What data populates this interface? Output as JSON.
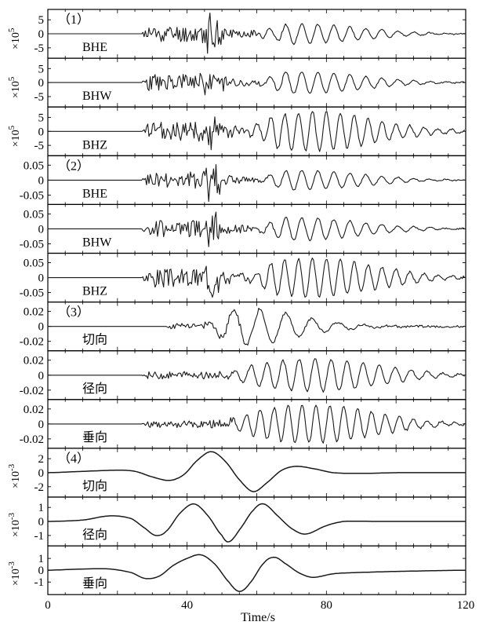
{
  "chart_data": {
    "type": "line",
    "xlabel": "Time/s",
    "xlim": [
      0,
      120
    ],
    "xticks": [
      "0",
      "40",
      "80",
      "120"
    ],
    "groups": [
      "（1）",
      "（2）",
      "（3）",
      "（4）"
    ],
    "panels": [
      {
        "group": "（1）",
        "name": "BHE",
        "exp": "×10",
        "exp_sup": "5",
        "ticks": [
          "5",
          "0",
          "-5"
        ],
        "tick_values": [
          5,
          0,
          -5
        ],
        "ylim": [
          -8,
          8
        ],
        "onset": 27,
        "burst": 47,
        "amp": 3.0,
        "burst_amp": 7.5,
        "surf_start": 58,
        "surf_amp": 3.5,
        "period": 4.6,
        "peak": 72,
        "seed": 11
      },
      {
        "group": "（1）",
        "name": "BHW",
        "exp": "×10",
        "exp_sup": "5",
        "ticks": [
          "5",
          "0",
          "-5"
        ],
        "tick_values": [
          5,
          0,
          -5
        ],
        "ylim": [
          -8,
          8
        ],
        "onset": 27,
        "burst": 47,
        "amp": 3.0,
        "burst_amp": 7.0,
        "surf_start": 58,
        "surf_amp": 4.0,
        "period": 4.6,
        "peak": 72,
        "seed": 23
      },
      {
        "group": "（1）",
        "name": "BHZ",
        "exp": "×10",
        "exp_sup": "5",
        "ticks": [
          "5",
          "0",
          "-5"
        ],
        "tick_values": [
          5,
          0,
          -5
        ],
        "ylim": [
          -8,
          8
        ],
        "onset": 27,
        "burst": 47,
        "amp": 3.5,
        "burst_amp": 5.0,
        "surf_start": 55,
        "surf_amp": 7.0,
        "period": 4.0,
        "peak": 76,
        "seed": 37
      },
      {
        "group": "（2）",
        "name": "BHE",
        "exp": "",
        "exp_sup": "",
        "ticks": [
          "0.05",
          "0",
          "-0.05"
        ],
        "tick_values": [
          0.05,
          0,
          -0.05
        ],
        "ylim": [
          -0.075,
          0.075
        ],
        "onset": 27,
        "burst": 47,
        "amp": 0.028,
        "burst_amp": 0.07,
        "surf_start": 58,
        "surf_amp": 0.033,
        "period": 4.6,
        "peak": 72,
        "seed": 41
      },
      {
        "group": "（2）",
        "name": "BHW",
        "exp": "",
        "exp_sup": "",
        "ticks": [
          "0.05",
          "0",
          "-0.05"
        ],
        "tick_values": [
          0.05,
          0,
          -0.05
        ],
        "ylim": [
          -0.075,
          0.075
        ],
        "onset": 27,
        "burst": 47,
        "amp": 0.028,
        "burst_amp": 0.066,
        "surf_start": 58,
        "surf_amp": 0.038,
        "period": 4.6,
        "peak": 72,
        "seed": 53
      },
      {
        "group": "（2）",
        "name": "BHZ",
        "exp": "",
        "exp_sup": "",
        "ticks": [
          "0.05",
          "0",
          "-0.05"
        ],
        "tick_values": [
          0.05,
          0,
          -0.05
        ],
        "ylim": [
          -0.075,
          0.075
        ],
        "onset": 27,
        "burst": 47,
        "amp": 0.032,
        "burst_amp": 0.045,
        "surf_start": 55,
        "surf_amp": 0.065,
        "period": 4.0,
        "peak": 76,
        "seed": 67
      },
      {
        "group": "（3）",
        "name": "切向",
        "exp": "",
        "exp_sup": "",
        "ticks": [
          "0.02",
          "0",
          "-0.02"
        ],
        "tick_values": [
          0.02,
          0,
          -0.02
        ],
        "ylim": [
          -0.03,
          0.03
        ],
        "onset": 34,
        "burst": 46,
        "amp": 0.004,
        "burst_amp": 0.0,
        "surf_start": 44,
        "surf_amp": 0.026,
        "period": 7.5,
        "peak": 52,
        "seed": 71
      },
      {
        "group": "（3）",
        "name": "径向",
        "exp": "",
        "exp_sup": "",
        "ticks": [
          "0.02",
          "0",
          "-0.02"
        ],
        "tick_values": [
          0.02,
          0,
          -0.02
        ],
        "ylim": [
          -0.03,
          0.03
        ],
        "onset": 27,
        "burst": 47,
        "amp": 0.005,
        "burst_amp": 0.004,
        "surf_start": 48,
        "surf_amp": 0.022,
        "period": 4.6,
        "peak": 77,
        "seed": 83
      },
      {
        "group": "（3）",
        "name": "垂向",
        "exp": "",
        "exp_sup": "",
        "ticks": [
          "0.02",
          "0",
          "-0.02"
        ],
        "tick_values": [
          0.02,
          0,
          -0.02
        ],
        "ylim": [
          -0.03,
          0.03
        ],
        "onset": 27,
        "burst": 47,
        "amp": 0.005,
        "burst_amp": 0.004,
        "surf_start": 48,
        "surf_amp": 0.026,
        "period": 4.0,
        "peak": 76,
        "seed": 97
      },
      {
        "group": "（4）",
        "name": "切向",
        "exp": "×10",
        "exp_sup": "-3",
        "ticks": [
          "2",
          "0",
          "-2"
        ],
        "tick_values": [
          2,
          0,
          -2
        ],
        "ylim": [
          -3.2,
          3.2
        ],
        "smooth": [
          [
            0,
            0
          ],
          [
            8,
            0.15
          ],
          [
            20,
            0.35
          ],
          [
            25,
            0.2
          ],
          [
            30,
            -0.6
          ],
          [
            35,
            -1.1
          ],
          [
            39,
            -0.3
          ],
          [
            43,
            1.8
          ],
          [
            47,
            3.0
          ],
          [
            51,
            1.6
          ],
          [
            55,
            -1.0
          ],
          [
            59,
            -2.7
          ],
          [
            63,
            -1.4
          ],
          [
            67,
            0.3
          ],
          [
            71,
            0.9
          ],
          [
            76,
            0.6
          ],
          [
            82,
            0.0
          ],
          [
            90,
            -0.1
          ],
          [
            100,
            0.0
          ],
          [
            120,
            0.0
          ]
        ]
      },
      {
        "group": "（4）",
        "name": "径向",
        "exp": "×10",
        "exp_sup": "-3",
        "ticks": [
          "1",
          "0",
          "-1"
        ],
        "tick_values": [
          1,
          0,
          -1
        ],
        "ylim": [
          -1.6,
          1.6
        ],
        "smooth": [
          [
            0,
            0
          ],
          [
            10,
            0.1
          ],
          [
            18,
            0.4
          ],
          [
            24,
            0.2
          ],
          [
            28,
            -0.5
          ],
          [
            31,
            -1.0
          ],
          [
            34,
            -0.7
          ],
          [
            38,
            0.6
          ],
          [
            42,
            1.25
          ],
          [
            46,
            0.4
          ],
          [
            50,
            -1.0
          ],
          [
            52,
            -1.45
          ],
          [
            55,
            -0.6
          ],
          [
            59,
            0.8
          ],
          [
            62,
            1.25
          ],
          [
            66,
            0.4
          ],
          [
            70,
            -0.5
          ],
          [
            74,
            -0.9
          ],
          [
            80,
            -0.3
          ],
          [
            85,
            0.0
          ],
          [
            95,
            0.0
          ],
          [
            120,
            0.0
          ]
        ]
      },
      {
        "group": "（4）",
        "name": "垂向",
        "exp": "×10",
        "exp_sup": "-3",
        "ticks": [
          "1",
          "0",
          "-1"
        ],
        "tick_values": [
          1,
          0,
          -1
        ],
        "ylim": [
          -1.9,
          1.9
        ],
        "smooth": [
          [
            0,
            0
          ],
          [
            10,
            0.1
          ],
          [
            18,
            0.1
          ],
          [
            24,
            -0.2
          ],
          [
            28,
            -0.7
          ],
          [
            32,
            -0.5
          ],
          [
            36,
            0.4
          ],
          [
            40,
            1.0
          ],
          [
            44,
            1.3
          ],
          [
            48,
            0.5
          ],
          [
            52,
            -1.0
          ],
          [
            55,
            -1.8
          ],
          [
            58,
            -1.1
          ],
          [
            62,
            0.6
          ],
          [
            65,
            1.1
          ],
          [
            68,
            0.6
          ],
          [
            72,
            -0.2
          ],
          [
            76,
            -0.6
          ],
          [
            82,
            -0.3
          ],
          [
            88,
            -0.2
          ],
          [
            100,
            -0.1
          ],
          [
            120,
            0.0
          ]
        ]
      }
    ]
  }
}
